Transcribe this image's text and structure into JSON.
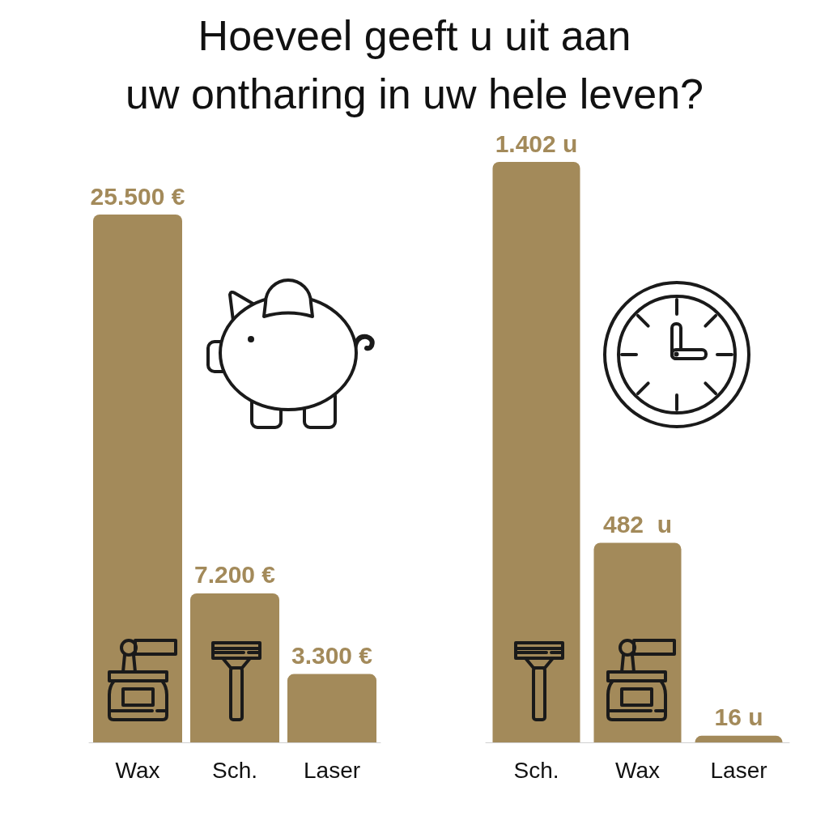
{
  "chart_data": [
    {
      "type": "bar",
      "title": "Hoeveel geeft u uit aan\nuw ontharing in uw hele leven?",
      "categories": [
        "Wax",
        "Sch.",
        "Laser"
      ],
      "values": [
        25500,
        7200,
        3300
      ],
      "value_labels": [
        "25.500 €",
        "7.200 €",
        "3.300 €"
      ],
      "color": "#a38a5a"
    },
    {
      "type": "bar",
      "categories": [
        "Sch.",
        "Wax",
        "Laser"
      ],
      "values": [
        1402,
        482,
        16
      ],
      "value_labels": [
        "1.402 u",
        "482  u",
        "16 u"
      ],
      "color": "#a38a5a"
    }
  ]
}
